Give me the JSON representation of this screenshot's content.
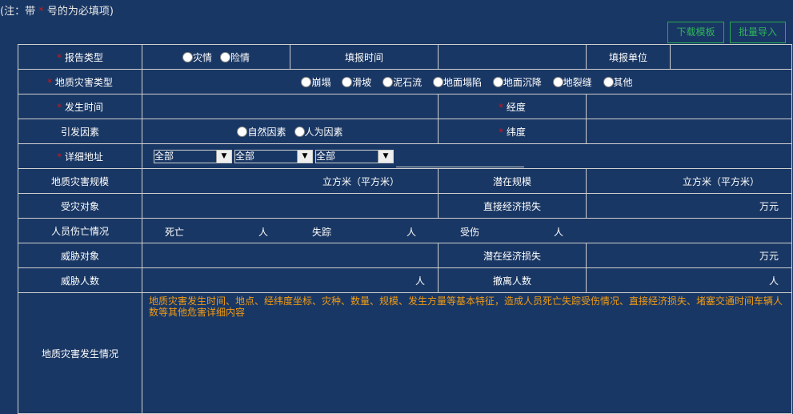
{
  "note": {
    "prefix": "(注：带",
    "star": "*",
    "suffix": "号的为必填项)"
  },
  "buttons": {
    "download": "下载模板",
    "import": "批量导入"
  },
  "form": {
    "star": "*",
    "report_type": {
      "label": "报告类型",
      "options": [
        "灾情",
        "险情"
      ]
    },
    "fill_time": {
      "label": "填报时间"
    },
    "fill_unit": {
      "label": "填报单位"
    },
    "disaster_type": {
      "label": "地质灾害类型",
      "options": [
        "崩塌",
        "滑坡",
        "泥石流",
        "地面塌陷",
        "地面沉降",
        "地裂缝",
        "其他"
      ]
    },
    "occur_time": {
      "label": "发生时间"
    },
    "longitude": {
      "label": "经度"
    },
    "cause": {
      "label": "引发因素",
      "options": [
        "自然因素",
        "人为因素"
      ]
    },
    "latitude": {
      "label": "纬度"
    },
    "address": {
      "label": "详细地址",
      "selects": [
        "全部",
        "全部",
        "全部"
      ]
    },
    "scale": {
      "label": "地质灾害规模",
      "unit": "立方米（平方米）"
    },
    "potential_scale": {
      "label": "潜在规模",
      "unit": "立方米（平方米）"
    },
    "affected": {
      "label": "受灾对象"
    },
    "direct_loss": {
      "label": "直接经济损失",
      "unit": "万元"
    },
    "casualty": {
      "label": "人员伤亡情况",
      "dead": "死亡",
      "missing": "失踪",
      "injured": "受伤",
      "unit": "人"
    },
    "threat_obj": {
      "label": "威胁对象"
    },
    "potential_loss": {
      "label": "潜在经济损失",
      "unit": "万元"
    },
    "threat_num": {
      "label": "威胁人数",
      "unit": "人"
    },
    "evacuated": {
      "label": "撤离人数",
      "unit": "人"
    },
    "situation": {
      "label": "地质灾害发生情况",
      "placeholder": "地质灾害发生时间、地点、经纬度坐标、灾种、数量、规模、发生方量等基本特征，造成人员死亡失踪受伤情况、直接经济损失、堵塞交通时间车辆人数等其他危害详细内容"
    }
  }
}
